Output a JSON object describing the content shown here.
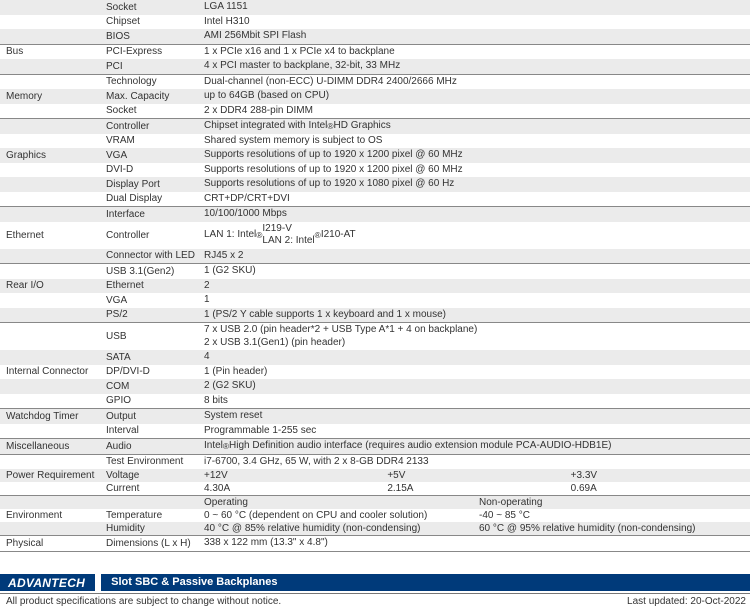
{
  "sections": [
    {
      "category": "",
      "rows": [
        {
          "param": "Socket",
          "val": "LGA 1151",
          "bg": "g"
        },
        {
          "param": "Chipset",
          "val": "Intel H310",
          "bg": "w"
        },
        {
          "param": "BIOS",
          "val": "AMI 256Mbit SPI Flash",
          "bg": "g"
        }
      ]
    },
    {
      "category": "Bus",
      "rows": [
        {
          "param": "PCI-Express",
          "val": "1 x PCIe x16 and 1 x PCIe x4 to backplane",
          "bg": "w"
        },
        {
          "param": "PCI",
          "val": "4 x PCI master to backplane, 32-bit, 33 MHz",
          "bg": "g"
        }
      ]
    },
    {
      "category": "Memory",
      "rows": [
        {
          "param": "Technology",
          "val": "Dual-channel (non-ECC) U-DIMM DDR4 2400/2666 MHz",
          "bg": "w"
        },
        {
          "param": "Max. Capacity",
          "val": "up to 64GB (based on CPU)",
          "bg": "g"
        },
        {
          "param": "Socket",
          "val": "2 x DDR4 288-pin DIMM",
          "bg": "w"
        }
      ]
    },
    {
      "category": "Graphics",
      "rows": [
        {
          "param": "Controller",
          "val": "Chipset integrated with Intel® HD Graphics",
          "bg": "g"
        },
        {
          "param": "VRAM",
          "val": "Shared system memory is subject to OS",
          "bg": "w"
        },
        {
          "param": "VGA",
          "val": "Supports resolutions of up to 1920 x 1200 pixel @ 60 MHz",
          "bg": "g"
        },
        {
          "param": "DVI-D",
          "val": "Supports resolutions of up to 1920 x 1200 pixel @ 60 MHz",
          "bg": "w"
        },
        {
          "param": "Display Port",
          "val": "Supports resolutions of up to 1920 x 1080 pixel @ 60 Hz",
          "bg": "g"
        },
        {
          "param": "Dual Display",
          "val": "CRT+DP/CRT+DVI",
          "bg": "w"
        }
      ]
    },
    {
      "category": "Ethernet",
      "rows": [
        {
          "param": "Interface",
          "val": "10/100/1000 Mbps",
          "bg": "g"
        },
        {
          "param": "Controller",
          "val": "LAN 1: Intel® I219-V\nLAN 2: Intel® I210-AT",
          "bg": "w"
        },
        {
          "param": "Connector with LED",
          "val": "RJ45 x 2",
          "bg": "g"
        }
      ]
    },
    {
      "category": "Rear I/O",
      "rows": [
        {
          "param": "USB 3.1(Gen2)",
          "val": "1 (G2 SKU)",
          "bg": "w"
        },
        {
          "param": "Ethernet",
          "val": "2",
          "bg": "g"
        },
        {
          "param": "VGA",
          "val": "1",
          "bg": "w"
        },
        {
          "param": "PS/2",
          "val": "1 (PS/2 Y cable supports 1 x keyboard and 1 x mouse)",
          "bg": "g"
        }
      ]
    },
    {
      "category": "Internal Connector",
      "rows": [
        {
          "param": "USB",
          "val": "7 x USB 2.0 (pin header*2 + USB Type A*1 + 4 on backplane)\n2 x USB 3.1(Gen1) (pin header)",
          "bg": "w"
        },
        {
          "param": "SATA",
          "val": "4",
          "bg": "g"
        },
        {
          "param": "DP/DVI-D",
          "val": "1 (Pin header)",
          "bg": "w"
        },
        {
          "param": "COM",
          "val": "2 (G2 SKU)",
          "bg": "g"
        },
        {
          "param": "GPIO",
          "val": "8 bits",
          "bg": "w"
        }
      ]
    },
    {
      "category": "Watchdog Timer",
      "rows": [
        {
          "param": "Output",
          "val": "System reset",
          "bg": "g"
        },
        {
          "param": "Interval",
          "val": "Programmable 1-255 sec",
          "bg": "w"
        }
      ]
    },
    {
      "category": "Miscellaneous",
      "rows": [
        {
          "param": "Audio",
          "val": "Intel® High Definition audio interface (requires audio extension module PCA-AUDIO-HDB1E)",
          "bg": "g"
        }
      ]
    },
    {
      "category": "Power Requirement",
      "rows": [
        {
          "param": "Test Environment",
          "val": "i7-6700, 3.4 GHz, 65 W, with 2 x 8-GB DDR4 2133",
          "bg": "w"
        },
        {
          "param": "Voltage",
          "cols": [
            "+12V",
            "+5V",
            "+3.3V"
          ],
          "bg": "g"
        },
        {
          "param": "Current",
          "cols": [
            "4.30A",
            "2.15A",
            "0.69A"
          ],
          "bg": "w"
        }
      ]
    },
    {
      "category": "Environment",
      "rows": [
        {
          "param": "",
          "cols2": [
            "Operating",
            "Non-operating"
          ],
          "bg": "g"
        },
        {
          "param": "Temperature",
          "cols2": [
            "0 ~ 60 °C (dependent on CPU and cooler solution)",
            "-40 ~ 85 °C"
          ],
          "bg": "w"
        },
        {
          "param": "Humidity",
          "cols2": [
            "40 °C @ 85% relative humidity (non-condensing)",
            "60 °C @ 95% relative humidity (non-condensing)"
          ],
          "bg": "g"
        }
      ]
    },
    {
      "category": "Physical",
      "rows": [
        {
          "param": "Dimensions (L x H)",
          "val": "338 x 122 mm (13.3\" x 4.8\")",
          "bg": "w"
        }
      ]
    }
  ],
  "footer": {
    "logo": "ADVANTECH",
    "category_bar": "Slot SBC & Passive Backplanes",
    "disclaimer": "All product specifications are subject to change without notice.",
    "updated": "Last updated: 20-Oct-2022"
  }
}
